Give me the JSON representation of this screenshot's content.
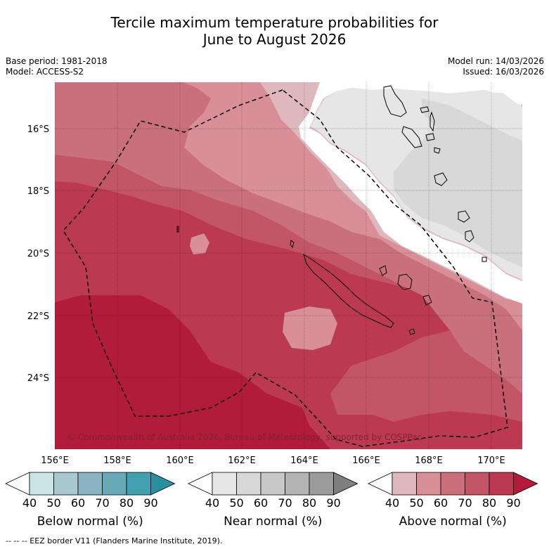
{
  "header": {
    "title_line1": "Tercile maximum temperature probabilities for",
    "title_line2": "June to August 2026",
    "base_period": "Base period: 1981-2018",
    "model": "Model: ACCESS-S2",
    "model_run": "Model run: 14/03/2026",
    "issued": "Issued: 16/03/2026"
  },
  "map": {
    "lon_labels": [
      "156°E",
      "158°E",
      "160°E",
      "162°E",
      "164°E",
      "166°E",
      "168°E",
      "170°E"
    ],
    "lat_labels": [
      "16°S",
      "18°S",
      "20°S",
      "22°S",
      "24°S"
    ],
    "copyright": "© Commonwealth of Australia 2026, Bureau of Meteorology, supported by COSPPac",
    "colors": {
      "above_40": "#dfb8bd",
      "above_50": "#d88f97",
      "above_60": "#c9707c",
      "above_70": "#c25667",
      "above_80": "#bb3a51",
      "above_90": "#b11c3a",
      "near_40": "#e6e6e6",
      "near_50": "#d8d8d8"
    }
  },
  "colorbars": [
    {
      "name": "below",
      "label": "Below normal (%)",
      "ticks": [
        "40",
        "50",
        "60",
        "70",
        "80",
        "90"
      ],
      "colors": [
        "#cce4e8",
        "#a9c9cf",
        "#88b5bf",
        "#67a9b7",
        "#43a0b0",
        "#2a8fa3"
      ]
    },
    {
      "name": "near",
      "label": "Near normal (%)",
      "ticks": [
        "40",
        "50",
        "60",
        "70",
        "80",
        "90"
      ],
      "colors": [
        "#e6e6e6",
        "#d8d8d8",
        "#c8c8c8",
        "#b4b4b4",
        "#9c9c9c",
        "#7f7f7f"
      ]
    },
    {
      "name": "above",
      "label": "Above normal (%)",
      "ticks": [
        "40",
        "50",
        "60",
        "70",
        "80",
        "90"
      ],
      "colors": [
        "#dfb8bd",
        "#d88f97",
        "#c9707c",
        "#c25667",
        "#bb3a51",
        "#b11c3a"
      ]
    }
  ],
  "legend": {
    "eez": "-- -- -- EEZ border V11 (Flanders Marine Institute, 2019)."
  }
}
